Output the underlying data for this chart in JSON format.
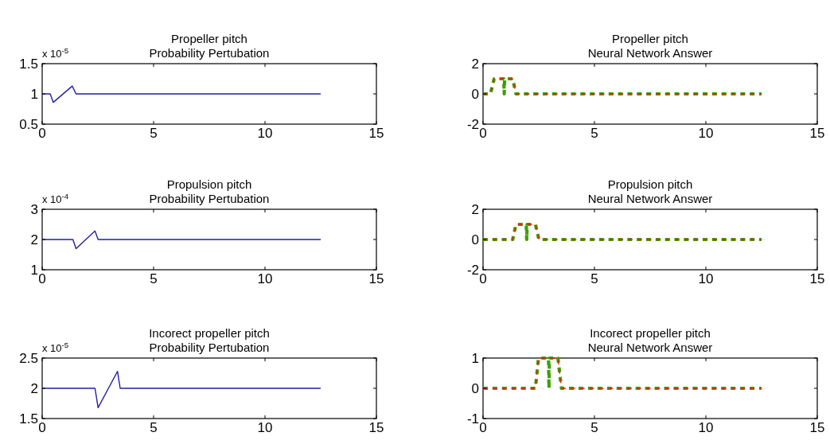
{
  "chart_data": [
    {
      "type": "line",
      "title": "Propeller pitch",
      "subtitle": "Probability Pertubation",
      "annotations": [
        "x 10$^{-5}$"
      ],
      "xlim": [
        0,
        15
      ],
      "xticks": [
        0,
        5,
        10,
        15
      ],
      "ylim": [
        0.5,
        1.5
      ],
      "yticks": [
        0.5,
        1,
        1.5
      ],
      "grid": false,
      "series": [
        {
          "color": "#2020a0",
          "x": [
            0,
            0.36,
            0.5,
            1.35,
            1.52,
            12.5
          ],
          "values": [
            1,
            1,
            0.86,
            1.13,
            1,
            1
          ]
        }
      ]
    },
    {
      "type": "line",
      "title": "Propeller pitch",
      "subtitle": "Neural Network Answer",
      "xlim": [
        0,
        15
      ],
      "xticks": [
        0,
        5,
        10,
        15
      ],
      "ylim": [
        -2,
        2
      ],
      "yticks": [
        -2,
        0,
        2
      ],
      "grid": false,
      "series": [
        {
          "color": "#e02010",
          "line_style": "dashed",
          "x": [
            0,
            0.33,
            0.5,
            1.33,
            1.48,
            12.5
          ],
          "values": [
            0,
            0,
            1,
            1,
            0,
            0
          ]
        },
        {
          "color": "#40a000",
          "line_style": "dashed",
          "x": [
            0,
            0.33,
            0.5,
            0.93,
            0.95,
            0.97,
            1.33,
            1.48,
            12.5
          ],
          "values": [
            0,
            0,
            1,
            1,
            0,
            1,
            1,
            0,
            0
          ]
        }
      ]
    },
    {
      "type": "line",
      "title": "Propulsion pitch",
      "subtitle": "Probability Pertubation",
      "annotations": [
        "x 10$^{-4}$"
      ],
      "xlim": [
        0,
        15
      ],
      "xticks": [
        0,
        5,
        10,
        15
      ],
      "ylim": [
        1,
        3
      ],
      "yticks": [
        1,
        2,
        3
      ],
      "grid": false,
      "series": [
        {
          "color": "#2020a0",
          "x": [
            0,
            1.38,
            1.52,
            2.37,
            2.51,
            12.5
          ],
          "values": [
            2,
            2,
            1.7,
            2.28,
            2,
            2
          ]
        }
      ]
    },
    {
      "type": "line",
      "title": "Propulsion pitch",
      "subtitle": "Neural Network Answer",
      "xlim": [
        0,
        15
      ],
      "xticks": [
        0,
        5,
        10,
        15
      ],
      "ylim": [
        -2,
        2
      ],
      "yticks": [
        -2,
        0,
        2
      ],
      "grid": false,
      "series": [
        {
          "color": "#e02010",
          "line_style": "dashed",
          "x": [
            0,
            1.33,
            1.48,
            2.35,
            2.51,
            12.5
          ],
          "values": [
            0,
            0,
            1,
            1,
            0,
            0
          ]
        },
        {
          "color": "#40a000",
          "line_style": "dashed",
          "x": [
            0,
            1.33,
            1.48,
            1.94,
            1.96,
            1.98,
            2.35,
            2.51,
            12.5
          ],
          "values": [
            0,
            0,
            1,
            1,
            0,
            1,
            1,
            0,
            0
          ]
        }
      ]
    },
    {
      "type": "line",
      "title": "Incorect propeller pitch",
      "subtitle": "Probability Pertubation",
      "annotations": [
        "x 10$^{-5}$"
      ],
      "xlim": [
        0,
        15
      ],
      "xticks": [
        0,
        5,
        10,
        15
      ],
      "ylim": [
        1.5,
        2.5
      ],
      "yticks": [
        1.5,
        2,
        2.5
      ],
      "grid": false,
      "series": [
        {
          "color": "#2020a0",
          "x": [
            0,
            2.37,
            2.51,
            3.38,
            3.5,
            12.5
          ],
          "values": [
            2,
            2,
            1.68,
            2.28,
            2,
            2
          ]
        }
      ]
    },
    {
      "type": "line",
      "title": "Incorect propeller pitch",
      "subtitle": "Neural Network Answer",
      "xlim": [
        0,
        15
      ],
      "xticks": [
        0,
        5,
        10,
        15
      ],
      "ylim": [
        -1,
        1
      ],
      "yticks": [
        -1,
        0,
        1
      ],
      "grid": false,
      "series": [
        {
          "color": "#e02010",
          "line_style": "dashed",
          "x": [
            0,
            2.35,
            2.49,
            3.36,
            3.52,
            12.5
          ],
          "values": [
            0,
            0,
            1,
            1,
            0,
            0
          ]
        },
        {
          "color": "#40a000",
          "line_style": "dashed",
          "x": [
            0,
            2.35,
            2.49,
            2.94,
            2.96,
            2.98,
            3.36,
            3.52,
            12.5
          ],
          "values": [
            0,
            0,
            1,
            1,
            0,
            1,
            1,
            0,
            0
          ]
        }
      ]
    }
  ]
}
